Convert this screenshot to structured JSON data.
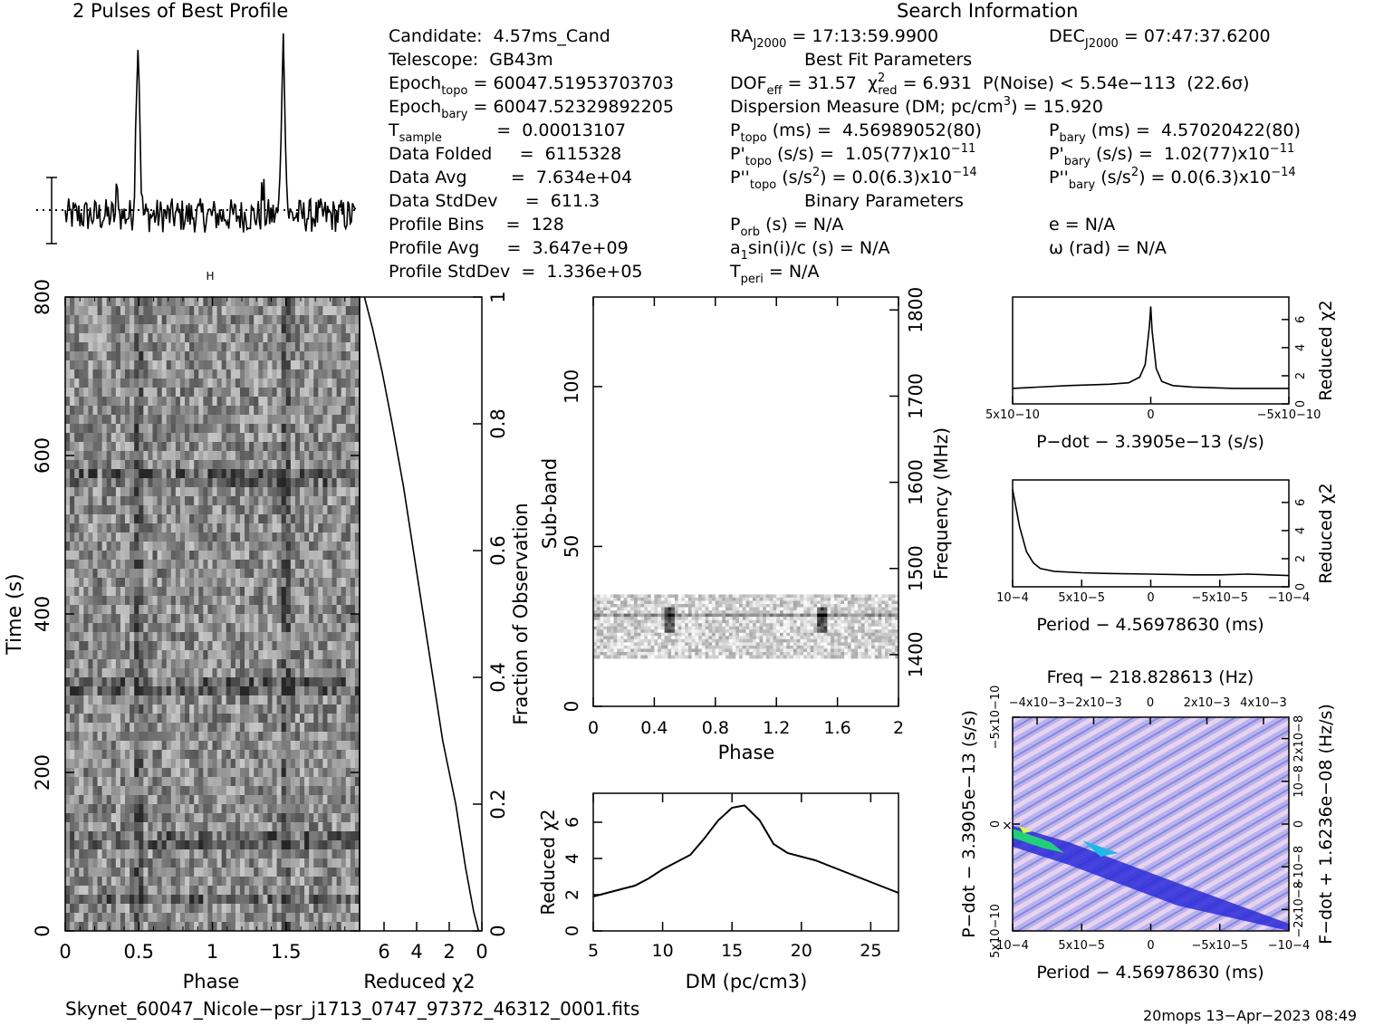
{
  "header": {
    "profile_title": "2 Pulses of Best Profile",
    "search_title": "Search Information",
    "best_fit_title": "Best Fit Parameters",
    "binary_title": "Binary Parameters"
  },
  "info_left": [
    {
      "label": "Candidate:  4.57ms_Cand"
    },
    {
      "label": "Telescope:  GB43m"
    },
    {
      "label": "Epoch",
      "sub": "topo",
      "value": " = 60047.51953703703"
    },
    {
      "label": "Epoch",
      "sub": "bary",
      "value": " = 60047.52329892205"
    },
    {
      "label": "T",
      "sub": "sample",
      "value": "          =  0.00013107"
    },
    {
      "label": "Data Folded     =  6115328"
    },
    {
      "label": "Data Avg        =  7.634e+04"
    },
    {
      "label": "Data StdDev     =  611.3"
    },
    {
      "label": "Profile Bins    =  128"
    },
    {
      "label": "Profile Avg     =  3.647e+09"
    },
    {
      "label": "Profile StdDev  =  1.336e+05"
    }
  ],
  "search": {
    "ra": {
      "label": "RA",
      "sub": "J2000",
      "value": " = 17:13:59.9900"
    },
    "dec": {
      "label": "DEC",
      "sub": "J2000",
      "value": " = 07:47:37.6200"
    },
    "dof_line": {
      "a": "DOF",
      "sub": "eff",
      "b": " = 31.57  χ",
      "sup": "2",
      "sub2": "red",
      "c": " = 6.931  P(Noise) < 5.54e−113  (22.6σ)"
    },
    "dm_line": {
      "a": "Dispersion Measure (DM; pc/cm",
      "sup": "3",
      "b": ") = 15.920"
    },
    "ptopo": {
      "a": "P",
      "sub": "topo",
      "b": " (ms) =  4.56989052(80)"
    },
    "pbary": {
      "a": "P",
      "sub": "bary",
      "b": " (ms) =  4.57020422(80)"
    },
    "pdtopo": {
      "a": "P'",
      "sub": "topo",
      "b": " (s/s) =  1.05(77)x10",
      "sup": "−11"
    },
    "pdbary": {
      "a": "P'",
      "sub": "bary",
      "b": " (s/s) =  1.02(77)x10",
      "sup": "−11"
    },
    "pddtopo": {
      "a": "P''",
      "sub": "topo",
      "b": " (s/s",
      "sup1": "2",
      "c": ") = 0.0(6.3)x10",
      "sup": "−14"
    },
    "pddbary": {
      "a": "P''",
      "sub": "bary",
      "b": " (s/s",
      "sup1": "2",
      "c": ") = 0.0(6.3)x10",
      "sup": "−14"
    },
    "porb": {
      "a": "P",
      "sub": "orb",
      "b": " (s) = N/A"
    },
    "ecc": "e = N/A",
    "asini": {
      "a": "a",
      "sub": "1",
      "b": "sin(i)/c (s) = N/A"
    },
    "omega": "ω (rad) = N/A",
    "tperi": {
      "a": "T",
      "sub": "peri",
      "b": " = N/A"
    }
  },
  "footer": {
    "filename": "Skynet_60047_Nicole−psr_j1713_0747_97372_46312_0001.fits",
    "stamp": "20mops 13−Apr−2023 08:49"
  },
  "chart_data": [
    {
      "id": "profile",
      "type": "line",
      "title": "2 Pulses of Best Profile",
      "xlabel": "",
      "ylabel": "",
      "pulse_phases": [
        0.5,
        1.5
      ],
      "note": "two periods of the folded pulse profile; sharp peak at phase 0.5 and 1.5"
    },
    {
      "id": "time_phase",
      "type": "heatmap",
      "xlabel": "Phase",
      "ylabel": "Time (s)",
      "xticks": [
        "0",
        "0.5",
        "1",
        "1.5"
      ],
      "yticks": [
        "0",
        "200",
        "400",
        "600",
        "800"
      ],
      "xlim": [
        0,
        2
      ],
      "ylim": [
        0,
        800
      ]
    },
    {
      "id": "redchi_time",
      "type": "line",
      "xlabel": "Reduced χ2",
      "ylabel": "Fraction of Observation",
      "xticks": [
        "6",
        "4",
        "2",
        "0"
      ],
      "yticks": [
        "0",
        "0.2",
        "0.4",
        "0.6",
        "0.8",
        "1"
      ],
      "xlim": [
        7.5,
        0
      ],
      "ylim": [
        0,
        1
      ],
      "x": [
        0.2,
        0.5,
        1.0,
        1.6,
        2.4,
        3.0,
        3.6,
        4.2,
        4.8,
        5.5,
        6.1,
        6.7,
        7.2
      ],
      "y": [
        0.0,
        0.03,
        0.1,
        0.2,
        0.3,
        0.4,
        0.5,
        0.6,
        0.7,
        0.8,
        0.88,
        0.95,
        1.0
      ]
    },
    {
      "id": "subband",
      "type": "heatmap",
      "xlabel": "Phase",
      "ylabel": "Sub-band",
      "y2label": "Frequency (MHz)",
      "xticks": [
        "0",
        "0.4",
        "0.8",
        "1.2",
        "1.6",
        "2"
      ],
      "yticks": [
        "0",
        "50",
        "100"
      ],
      "y2ticks": [
        "1400",
        "1500",
        "1600",
        "1700",
        "1800"
      ],
      "xlim": [
        0,
        2
      ],
      "ylim": [
        0,
        128
      ],
      "active_subbands": [
        15,
        35
      ]
    },
    {
      "id": "dm",
      "type": "line",
      "xlabel": "DM (pc/cm3)",
      "ylabel": "Reduced χ2",
      "xticks": [
        "5",
        "10",
        "15",
        "20",
        "25"
      ],
      "yticks": [
        "0",
        "2",
        "4",
        "6"
      ],
      "xlim": [
        5,
        27
      ],
      "ylim": [
        0,
        7.6
      ],
      "x": [
        5,
        6,
        7,
        8,
        9,
        10,
        11,
        12,
        13,
        14,
        15,
        15.9,
        17,
        18,
        19,
        20,
        21,
        22,
        23,
        24,
        25,
        26,
        27
      ],
      "y": [
        1.9,
        2.1,
        2.3,
        2.5,
        2.9,
        3.4,
        3.8,
        4.2,
        5.1,
        6.1,
        6.8,
        6.93,
        6.1,
        4.8,
        4.3,
        4.1,
        3.9,
        3.6,
        3.3,
        3.0,
        2.7,
        2.4,
        2.1
      ]
    },
    {
      "id": "pdot",
      "type": "line",
      "xlabel": "P−dot − 3.3905e−13 (s/s)",
      "ylabel": "Reduced χ2",
      "xticks": [
        "5x10−10",
        "0",
        "−5x10−10"
      ],
      "yticks": [
        "0",
        "2",
        "4",
        "6"
      ],
      "ylim": [
        0,
        7.6
      ],
      "x": [
        5.0,
        3.0,
        1.5,
        0.8,
        0.4,
        0.2,
        0.05,
        0.0,
        -0.05,
        -0.2,
        -0.4,
        -0.8,
        -1.5,
        -3.0,
        -5.0
      ],
      "y": [
        1.1,
        1.3,
        1.4,
        1.5,
        1.9,
        2.8,
        5.5,
        6.93,
        5.2,
        2.5,
        1.6,
        1.3,
        1.2,
        1.1,
        1.1
      ]
    },
    {
      "id": "period",
      "type": "line",
      "xlabel": "Period − 4.56978630 (ms)",
      "ylabel": "Reduced χ2",
      "xticks": [
        "10−4",
        "5x10−5",
        "0",
        "−5x10−5",
        "−10−4"
      ],
      "yticks": [
        "0",
        "2",
        "4",
        "6"
      ],
      "ylim": [
        0,
        7.6
      ],
      "x": [
        10,
        9.5,
        9.0,
        8.5,
        8.0,
        7.0,
        5.0,
        3.0,
        0,
        -3.0,
        -5.0,
        -7.0,
        -10
      ],
      "y": [
        6.93,
        4.3,
        2.5,
        1.7,
        1.3,
        1.1,
        1.0,
        0.95,
        0.9,
        0.85,
        0.85,
        0.9,
        0.8
      ]
    },
    {
      "id": "ppdot",
      "type": "heatmap",
      "title": "Freq − 218.828613 (Hz)",
      "xlabel": "Period − 4.56978630 (ms)",
      "ylabel": "P−dot − 3.3905e−13 (s/s)",
      "y2label": "F−dot + 1.6236e−08 (Hz/s)",
      "xticks": [
        "10−4",
        "5x10−5",
        "0",
        "−5x10−5",
        "−10−4"
      ],
      "x2ticks": [
        "−4x10−3",
        "−2x10−3",
        "0",
        "2x10−3",
        "4x10−3"
      ],
      "yticks": [
        "5x10−10",
        "0",
        "−5x10−10"
      ],
      "y2ticks": [
        "−2x10−8",
        "−10−8",
        "0",
        "10−8",
        "2x10−8"
      ]
    }
  ]
}
